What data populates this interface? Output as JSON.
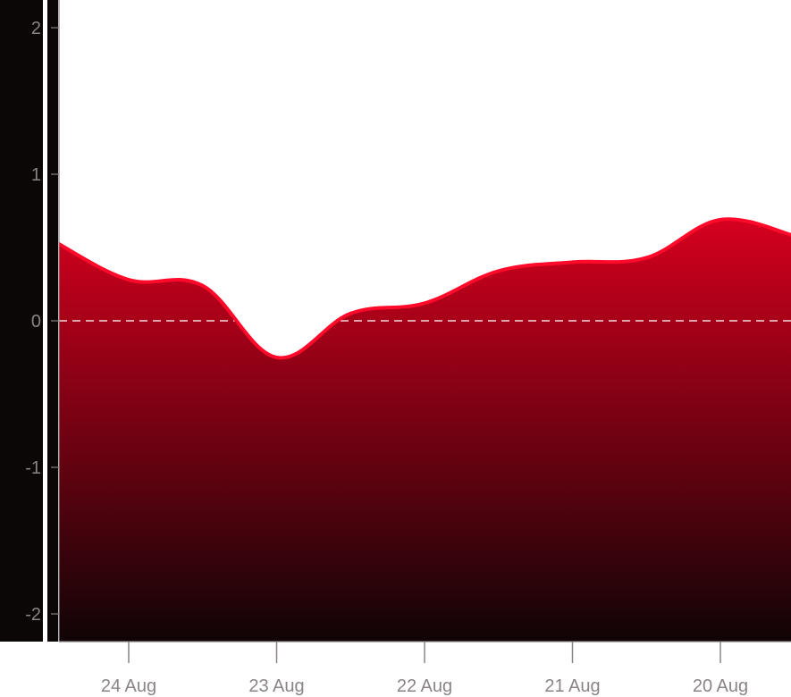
{
  "chart_data": {
    "type": "area",
    "title": "",
    "xlabel": "",
    "ylabel": "",
    "x_direction": "reversed",
    "x_ticks": [
      "24 Aug",
      "23 Aug",
      "22 Aug",
      "21 Aug",
      "20 Aug"
    ],
    "y_ticks": [
      "2",
      "1",
      "0",
      "-1",
      "-2"
    ],
    "ylim": [
      -2.2,
      2.2
    ],
    "baseline": 0,
    "grid": false,
    "series": [
      {
        "x": [
          "24 Aug 12:00",
          "24 Aug 00:00",
          "23 Aug 12:00",
          "23 Aug 00:00",
          "22 Aug 12:00",
          "22 Aug 00:00",
          "21 Aug 12:00",
          "21 Aug 00:00",
          "20 Aug 12:00",
          "20 Aug 00:00"
        ],
        "values": [
          0.54,
          0.28,
          0.24,
          -0.25,
          0.05,
          0.12,
          0.34,
          0.4,
          0.43,
          0.69
        ]
      },
      {
        "x": [
          "19 Aug 12:00"
        ],
        "values": [
          0.58
        ]
      }
    ],
    "colors": {
      "line": "#ff0a2a",
      "fill_top": "#d6001e",
      "fill_bottom": "#100406",
      "panel_background": "#0b0706",
      "axis_text": "#8a8486",
      "zero_line": "#ffffff"
    }
  }
}
